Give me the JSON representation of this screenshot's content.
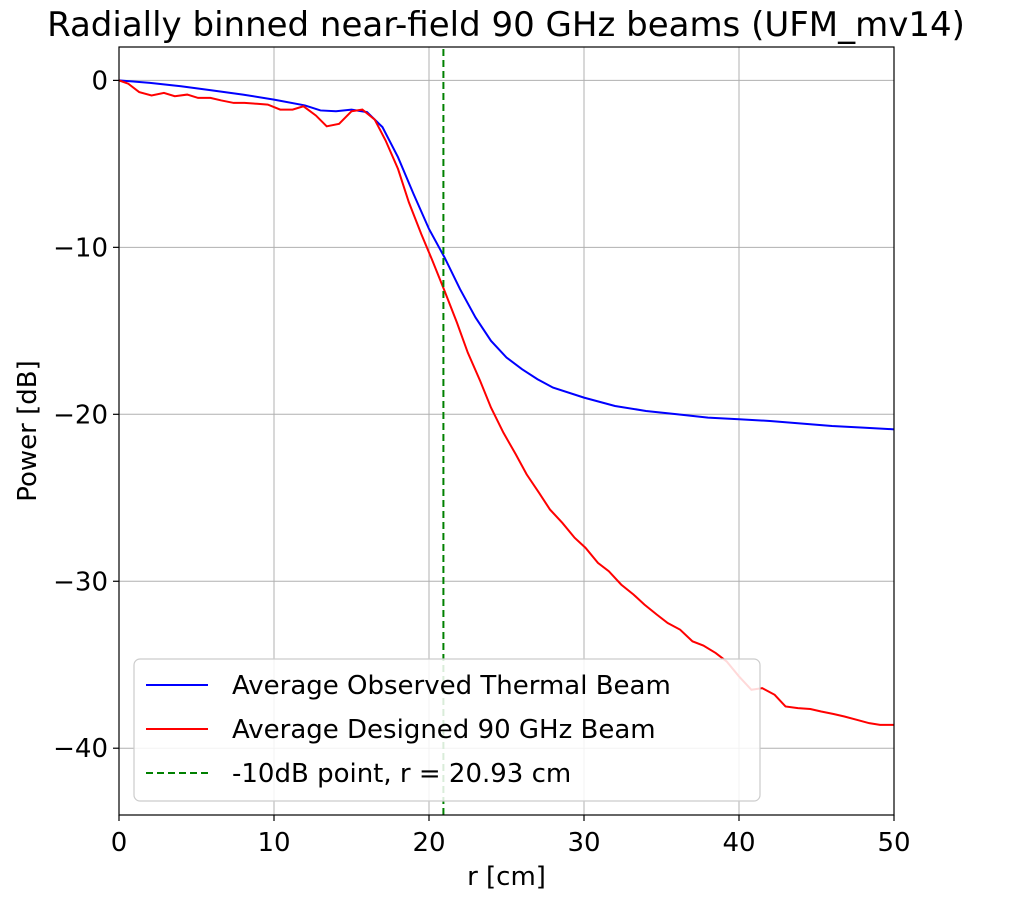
{
  "chart_data": {
    "type": "line",
    "title": "Radially binned near-field 90 GHz beams (UFM_mv14)",
    "xlabel": "r [cm]",
    "ylabel": "Power [dB]",
    "xlim": [
      0,
      50
    ],
    "ylim": [
      -44,
      2
    ],
    "xticks": [
      0,
      10,
      20,
      30,
      40,
      50
    ],
    "yticks": [
      0,
      -10,
      -20,
      -30,
      -40
    ],
    "xtick_labels": [
      "0",
      "10",
      "20",
      "30",
      "40",
      "50"
    ],
    "ytick_labels": [
      "0",
      "−10",
      "−20",
      "−30",
      "−40"
    ],
    "grid": true,
    "legend_position": "lower-left",
    "series": [
      {
        "name": "Average Observed Thermal Beam",
        "color": "#0000ff",
        "style": "solid",
        "x": [
          0,
          2,
          4,
          6,
          8,
          10,
          12,
          13,
          14,
          15,
          16,
          17,
          18,
          19,
          20,
          21,
          22,
          23,
          24,
          25,
          26,
          27,
          28,
          30,
          32,
          34,
          36,
          38,
          40,
          42,
          44,
          46,
          48,
          50
        ],
        "y": [
          0,
          -0.15,
          -0.35,
          -0.6,
          -0.85,
          -1.15,
          -1.5,
          -1.8,
          -1.85,
          -1.75,
          -1.9,
          -2.8,
          -4.6,
          -6.8,
          -8.9,
          -10.6,
          -12.5,
          -14.2,
          -15.6,
          -16.6,
          -17.3,
          -17.9,
          -18.4,
          -19.0,
          -19.5,
          -19.8,
          -20.0,
          -20.2,
          -20.3,
          -20.4,
          -20.55,
          -20.7,
          -20.8,
          -20.9
        ]
      },
      {
        "name": "Average Designed 90 GHz Beam",
        "color": "#ff0000",
        "style": "solid",
        "x": [
          0,
          0.6,
          1.3,
          2.1,
          2.9,
          3.6,
          4.4,
          5.1,
          5.9,
          6.6,
          7.4,
          8.1,
          8.9,
          9.6,
          10.4,
          11.2,
          11.9,
          12.7,
          13.4,
          14.2,
          15.0,
          15.7,
          16.5,
          17.2,
          18.0,
          18.7,
          19.5,
          20.2,
          21.0,
          21.8,
          22.5,
          23.3,
          24.0,
          24.8,
          25.6,
          26.3,
          27.1,
          27.8,
          28.6,
          29.4,
          30.1,
          30.9,
          31.6,
          32.4,
          33.2,
          33.9,
          34.7,
          35.4,
          36.2,
          37.0,
          37.7,
          38.5,
          39.2,
          40.0,
          40.8,
          41.5,
          42.3,
          43.0,
          43.8,
          44.6,
          45.3,
          46.1,
          46.8,
          47.6,
          48.4,
          49.1,
          50.0
        ],
        "y": [
          0,
          -0.2,
          -0.7,
          -0.9,
          -0.75,
          -0.95,
          -0.85,
          -1.05,
          -1.05,
          -1.2,
          -1.35,
          -1.35,
          -1.4,
          -1.45,
          -1.75,
          -1.75,
          -1.55,
          -2.1,
          -2.75,
          -2.6,
          -1.85,
          -1.75,
          -2.35,
          -3.6,
          -5.3,
          -7.3,
          -9.2,
          -10.75,
          -12.6,
          -14.5,
          -16.3,
          -18.0,
          -19.6,
          -21.1,
          -22.4,
          -23.6,
          -24.7,
          -25.7,
          -26.5,
          -27.4,
          -28.0,
          -28.9,
          -29.4,
          -30.2,
          -30.8,
          -31.4,
          -32.0,
          -32.5,
          -32.9,
          -33.6,
          -33.85,
          -34.3,
          -34.8,
          -35.7,
          -36.5,
          -36.4,
          -36.8,
          -37.5,
          -37.6,
          -37.65,
          -37.8,
          -37.95,
          -38.1,
          -38.3,
          -38.5,
          -38.6,
          -38.6
        ]
      },
      {
        "name": "-10dB point, r = 20.93 cm",
        "color": "#008000",
        "style": "dashed",
        "x": [
          20.93,
          20.93
        ],
        "y": [
          -44,
          2
        ]
      }
    ]
  }
}
